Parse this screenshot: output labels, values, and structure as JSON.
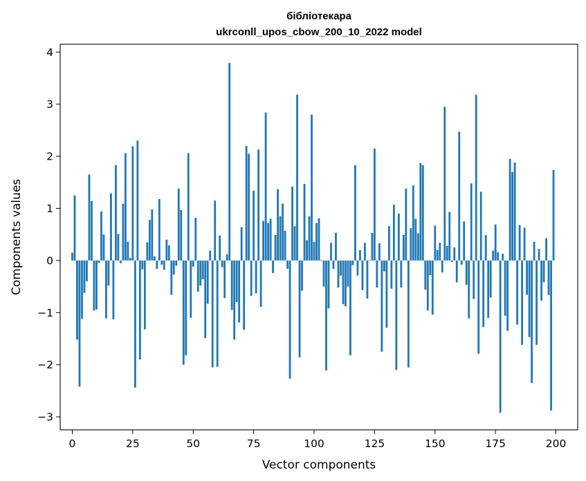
{
  "chart_data": {
    "type": "bar",
    "title_line1": "бібліотекара",
    "title_line2": "ukrconll_upos_cbow_200_10_2022 model",
    "xlabel": "Vector components",
    "ylabel": "Components values",
    "xlim": [
      -5,
      209
    ],
    "ylim": [
      -3.25,
      4.15
    ],
    "xticks": [
      0,
      25,
      50,
      75,
      100,
      125,
      150,
      175,
      200
    ],
    "yticks": [
      -3,
      -2,
      -1,
      0,
      1,
      2,
      3,
      4
    ],
    "ytick_labels": [
      "−3",
      "−2",
      "−1",
      "0",
      "1",
      "2",
      "3",
      "4"
    ],
    "grid": false,
    "bar_color": "#1f77b4",
    "values": [
      0.15,
      1.25,
      -1.52,
      -2.42,
      -1.12,
      -0.62,
      -0.4,
      1.65,
      1.14,
      -0.96,
      -0.94,
      -0.05,
      0.94,
      0.5,
      -1.11,
      -0.48,
      1.29,
      -1.13,
      1.83,
      0.51,
      -0.05,
      1.09,
      2.06,
      0.36,
      0.05,
      2.19,
      -2.44,
      2.3,
      -1.9,
      -0.17,
      -1.32,
      0.35,
      0.78,
      0.98,
      0.08,
      -0.16,
      1.18,
      -0.08,
      -0.18,
      0.4,
      0.29,
      -0.66,
      -0.27,
      -0.1,
      1.38,
      0.97,
      -2.0,
      -1.82,
      2.06,
      -1.1,
      -0.12,
      0.82,
      -0.6,
      -0.48,
      -0.36,
      -1.49,
      -0.83,
      0.19,
      -2.05,
      1.15,
      -2.04,
      0.48,
      -0.13,
      -0.72,
      0.12,
      3.79,
      -0.95,
      -1.52,
      -0.8,
      -1.19,
      0.64,
      -1.33,
      2.2,
      2.05,
      -0.68,
      1.34,
      -0.63,
      2.13,
      -0.89,
      0.76,
      2.84,
      0.72,
      0.8,
      -0.24,
      0.49,
      1.37,
      0.85,
      1.09,
      0.57,
      -0.16,
      -2.27,
      1.42,
      0.66,
      3.18,
      -1.86,
      -0.58,
      1.47,
      0.39,
      0.85,
      2.8,
      0.36,
      0.72,
      0.81,
      0.01,
      -0.5,
      -2.11,
      -0.92,
      0.34,
      -0.16,
      0.53,
      -0.52,
      -0.29,
      -0.84,
      -0.88,
      -0.5,
      -1.82,
      -0.09,
      1.83,
      -0.29,
      0.2,
      -0.57,
      0.34,
      -0.73,
      0.01,
      0.53,
      2.15,
      -0.52,
      0.33,
      -1.75,
      -0.21,
      -1.29,
      0.66,
      -0.54,
      1.07,
      -2.1,
      0.9,
      -0.52,
      0.49,
      1.38,
      -2.05,
      0.62,
      1.44,
      0.8,
      0.52,
      1.87,
      1.83,
      -0.56,
      -0.96,
      -0.28,
      -1.04,
      0.67,
      0.2,
      0.34,
      -0.23,
      2.95,
      0.28,
      0.93,
      -0.03,
      0.25,
      -0.42,
      2.47,
      -0.08,
      0.75,
      -0.47,
      -1.11,
      1.48,
      -0.74,
      3.18,
      -1.79,
      1.32,
      -1.28,
      0.49,
      -1.1,
      -0.71,
      0.19,
      0.69,
      0.16,
      -2.92,
      0.13,
      -1.06,
      -1.35,
      1.95,
      1.7,
      1.88,
      -1.23,
      0.68,
      -1.62,
      0.63,
      -0.66,
      -1.47,
      -2.35,
      0.36,
      -1.62,
      0.22,
      -0.77,
      -0.42,
      0.43,
      -0.66,
      -2.88,
      1.74
    ]
  }
}
